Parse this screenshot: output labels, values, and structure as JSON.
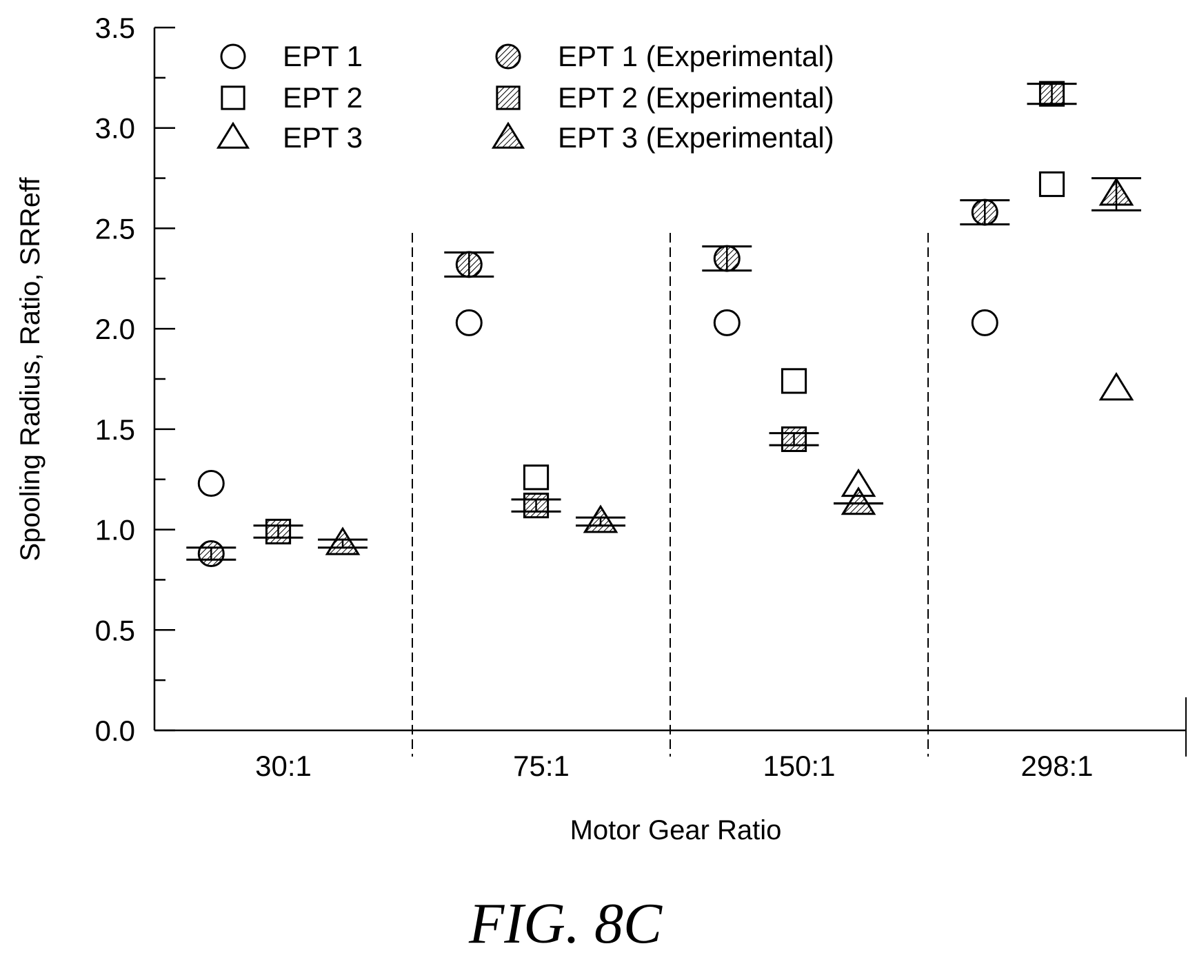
{
  "figure_label": "FIG. 8C",
  "chart_data": {
    "type": "scatter",
    "title": "",
    "xlabel": "Motor Gear Ratio",
    "ylabel": "Spooling Radius, Ratio, SRReff",
    "ylim": [
      0,
      3.5
    ],
    "y_ticks": [
      {
        "value": 0.0,
        "label": "0.0"
      },
      {
        "value": 0.5,
        "label": "0.5"
      },
      {
        "value": 1.0,
        "label": "1.0"
      },
      {
        "value": 1.5,
        "label": "1.5"
      },
      {
        "value": 2.0,
        "label": "2.0"
      },
      {
        "value": 2.5,
        "label": "2.5"
      },
      {
        "value": 3.0,
        "label": "3.0"
      },
      {
        "value": 3.5,
        "label": "3.5"
      }
    ],
    "categories": [
      "30:1",
      "75:1",
      "150:1",
      "298:1"
    ],
    "grid": false,
    "legend_position": "top-left",
    "series": [
      {
        "name": "EPT 1",
        "marker": "circle",
        "filled": false,
        "slot": 0,
        "values": [
          1.23,
          2.03,
          2.03,
          2.03
        ]
      },
      {
        "name": "EPT 2",
        "marker": "square",
        "filled": false,
        "slot": 1,
        "values": [
          null,
          1.26,
          1.74,
          2.72
        ]
      },
      {
        "name": "EPT 3",
        "marker": "triangle",
        "filled": false,
        "slot": 2,
        "values": [
          null,
          null,
          1.22,
          1.7
        ]
      },
      {
        "name": "EPT 1 (Experimental)",
        "marker": "circle",
        "filled": true,
        "slot": 0,
        "values": [
          0.88,
          2.32,
          2.35,
          2.58
        ],
        "errors": [
          0.03,
          0.06,
          0.06,
          0.06
        ]
      },
      {
        "name": "EPT 2 (Experimental)",
        "marker": "square",
        "filled": true,
        "slot": 1,
        "values": [
          0.99,
          1.12,
          1.45,
          3.17
        ],
        "errors": [
          0.03,
          0.03,
          0.03,
          0.05
        ]
      },
      {
        "name": "EPT 3 (Experimental)",
        "marker": "triangle",
        "filled": true,
        "slot": 2,
        "values": [
          0.93,
          1.04,
          1.13,
          2.67
        ],
        "errors": [
          0.02,
          0.02,
          0.0,
          0.08
        ]
      }
    ]
  }
}
